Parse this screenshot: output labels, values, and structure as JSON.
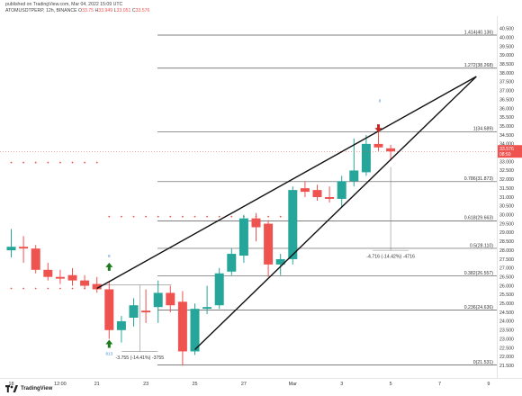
{
  "header": {
    "published": "published on TradingView.com, Mar 04, 2022 15:09 UTC",
    "symbol": "ATOMUSDTPERP, 12h, BINANCE",
    "ohlc": [
      {
        "label": "O",
        "value": "33.75",
        "dir": "dn"
      },
      {
        "label": "H",
        "value": "33.949",
        "dir": "dn"
      },
      {
        "label": "L",
        "value": "33.051",
        "dir": "dn"
      },
      {
        "label": "C",
        "value": "33.576",
        "dir": "dn"
      }
    ]
  },
  "footer": {
    "brand": "TradingView"
  },
  "colors": {
    "up": "#26a69a",
    "down": "#ef5350",
    "fib_line": "#555555",
    "trend": "#111111",
    "current_price_bg": "#ef5350"
  },
  "chart_data": {
    "type": "candlestick",
    "y_axis": {
      "min": 20.8,
      "max": 41.2,
      "ticks": [
        21.5,
        22.0,
        22.5,
        23.0,
        23.5,
        24.0,
        24.5,
        25.0,
        25.5,
        26.0,
        26.5,
        27.0,
        27.5,
        28.0,
        28.5,
        29.0,
        29.5,
        30.0,
        30.5,
        31.0,
        31.5,
        32.0,
        32.5,
        33.0,
        33.5,
        34.0,
        34.5,
        35.0,
        35.5,
        36.0,
        36.5,
        37.0,
        37.5,
        38.0,
        38.5,
        39.0,
        39.5,
        40.0,
        40.5
      ],
      "tick_labels": [
        "21.500",
        "22.000",
        "22.500",
        "23.000",
        "23.500",
        "24.000",
        "24.500",
        "25.000",
        "25.500",
        "26.000",
        "26.500",
        "27.000",
        "27.500",
        "28.000",
        "28.500",
        "29.000",
        "29.500",
        "30.000",
        "30.500",
        "31.000",
        "31.500",
        "32.000",
        "32.500",
        "33.000",
        "33.500",
        "34.000",
        "34.500",
        "35.000",
        "35.500",
        "36.000",
        "36.500",
        "37.000",
        "37.500",
        "38.000",
        "38.500",
        "39.000",
        "39.500",
        "40.000",
        "40.500"
      ],
      "current_price": {
        "value": 33.576,
        "label": "33.576",
        "countdown": "08:50"
      }
    },
    "x_axis": {
      "ticks": [
        {
          "i": 0,
          "label": "18"
        },
        {
          "i": 4,
          "label": "12:00"
        },
        {
          "i": 7,
          "label": "21"
        },
        {
          "i": 11,
          "label": "23"
        },
        {
          "i": 15,
          "label": "25"
        },
        {
          "i": 19,
          "label": "27"
        },
        {
          "i": 23,
          "label": "Mar"
        },
        {
          "i": 27,
          "label": "3"
        },
        {
          "i": 31,
          "label": "5"
        },
        {
          "i": 35,
          "label": "7"
        },
        {
          "i": 39,
          "label": "9"
        }
      ]
    },
    "candles": [
      {
        "i": 0,
        "o": 28.0,
        "h": 29.2,
        "l": 27.6,
        "c": 28.2
      },
      {
        "i": 1,
        "o": 28.2,
        "h": 28.8,
        "l": 27.3,
        "c": 28.1
      },
      {
        "i": 2,
        "o": 28.1,
        "h": 28.3,
        "l": 26.7,
        "c": 26.9
      },
      {
        "i": 3,
        "o": 26.9,
        "h": 27.3,
        "l": 26.3,
        "c": 26.5
      },
      {
        "i": 4,
        "o": 26.5,
        "h": 26.9,
        "l": 26.1,
        "c": 26.4
      },
      {
        "i": 5,
        "o": 26.6,
        "h": 27.0,
        "l": 26.0,
        "c": 26.3
      },
      {
        "i": 6,
        "o": 26.3,
        "h": 26.6,
        "l": 25.8,
        "c": 26.0
      },
      {
        "i": 7,
        "o": 26.1,
        "h": 26.5,
        "l": 25.6,
        "c": 25.8
      },
      {
        "i": 8,
        "o": 25.8,
        "h": 26.2,
        "l": 23.0,
        "c": 23.5
      },
      {
        "i": 9,
        "o": 23.5,
        "h": 24.3,
        "l": 22.8,
        "c": 24.0
      },
      {
        "i": 10,
        "o": 24.2,
        "h": 25.3,
        "l": 23.7,
        "c": 24.9
      },
      {
        "i": 11,
        "o": 24.6,
        "h": 25.8,
        "l": 23.9,
        "c": 24.5
      },
      {
        "i": 12,
        "o": 24.8,
        "h": 26.3,
        "l": 23.9,
        "c": 25.6
      },
      {
        "i": 13,
        "o": 25.6,
        "h": 26.0,
        "l": 24.5,
        "c": 24.9
      },
      {
        "i": 14,
        "o": 25.1,
        "h": 25.7,
        "l": 21.5,
        "c": 22.3
      },
      {
        "i": 15,
        "o": 22.3,
        "h": 25.0,
        "l": 22.1,
        "c": 24.7
      },
      {
        "i": 16,
        "o": 24.7,
        "h": 26.0,
        "l": 24.4,
        "c": 24.8
      },
      {
        "i": 17,
        "o": 24.9,
        "h": 27.0,
        "l": 24.7,
        "c": 26.7
      },
      {
        "i": 18,
        "o": 26.8,
        "h": 28.1,
        "l": 26.6,
        "c": 27.8
      },
      {
        "i": 19,
        "o": 27.7,
        "h": 30.0,
        "l": 27.3,
        "c": 29.8
      },
      {
        "i": 20,
        "o": 29.8,
        "h": 30.1,
        "l": 28.5,
        "c": 29.3
      },
      {
        "i": 21,
        "o": 29.5,
        "h": 29.7,
        "l": 26.5,
        "c": 27.2
      },
      {
        "i": 22,
        "o": 27.2,
        "h": 27.8,
        "l": 26.6,
        "c": 27.5
      },
      {
        "i": 23,
        "o": 27.5,
        "h": 31.6,
        "l": 27.2,
        "c": 31.4
      },
      {
        "i": 24,
        "o": 31.5,
        "h": 31.9,
        "l": 31.0,
        "c": 31.3
      },
      {
        "i": 25,
        "o": 31.4,
        "h": 31.7,
        "l": 30.8,
        "c": 31.0
      },
      {
        "i": 26,
        "o": 31.0,
        "h": 31.6,
        "l": 30.7,
        "c": 30.9
      },
      {
        "i": 27,
        "o": 30.9,
        "h": 32.2,
        "l": 30.4,
        "c": 31.9
      },
      {
        "i": 28,
        "o": 31.9,
        "h": 34.3,
        "l": 31.6,
        "c": 32.5
      },
      {
        "i": 29,
        "o": 32.4,
        "h": 34.5,
        "l": 32.2,
        "c": 34.0
      },
      {
        "i": 30,
        "o": 34.0,
        "h": 34.8,
        "l": 33.6,
        "c": 33.8
      },
      {
        "i": 31,
        "o": 33.75,
        "h": 33.949,
        "l": 33.051,
        "c": 33.576
      }
    ],
    "fib_levels": [
      {
        "ratio": 0,
        "price": 21.531,
        "label": "0(21.531)"
      },
      {
        "ratio": 0.236,
        "price": 24.636,
        "label": "0.236(24.636)"
      },
      {
        "ratio": 0.382,
        "price": 26.557,
        "label": "0.382(26.557)"
      },
      {
        "ratio": 0.5,
        "price": 28.11,
        "label": "0.5(28.110)"
      },
      {
        "ratio": 0.618,
        "price": 29.663,
        "label": "0.618(29.663)"
      },
      {
        "ratio": 0.786,
        "price": 31.873,
        "label": "0.786(31.873)"
      },
      {
        "ratio": 1,
        "price": 34.689,
        "label": "1(34.689)"
      },
      {
        "ratio": 1.272,
        "price": 38.268,
        "label": "1.272(38.268)"
      },
      {
        "ratio": 1.414,
        "price": 40.136,
        "label": "1.414(40.136)"
      }
    ],
    "wedge_lines": [
      {
        "from": {
          "i": 7,
          "p": 25.85
        },
        "to": {
          "i": 38,
          "p": 37.8
        }
      },
      {
        "from": {
          "i": 15,
          "p": 22.4
        },
        "to": {
          "i": 38,
          "p": 37.8
        }
      }
    ],
    "measurements": [
      {
        "label": "-3.755 (-14.41%) -3755",
        "i": 10.5,
        "top": 26.05,
        "bottom": 22.3
      },
      {
        "label": "-4.716 (-14.42%) -4716",
        "i": 31,
        "top": 32.7,
        "bottom": 28.0
      }
    ],
    "signals": [
      {
        "type": "up",
        "i": 8,
        "p": 27.05
      },
      {
        "type": "up",
        "i": 8,
        "p": 22.7
      },
      {
        "type": "down",
        "i": 30,
        "p": 34.9
      }
    ],
    "small_labels": [
      {
        "text": "8",
        "i": 8,
        "p": 27.6
      },
      {
        "text": "813",
        "i": 8,
        "p": 22.1
      },
      {
        "text": "8",
        "i": 30.1,
        "p": 36.35
      }
    ],
    "dotted_rows": [
      {
        "p": 32.95,
        "from": 0,
        "to": 7
      },
      {
        "p": 29.9,
        "from": 8,
        "to": 22
      },
      {
        "p": 25.85,
        "from": 0,
        "to": 7
      }
    ]
  }
}
